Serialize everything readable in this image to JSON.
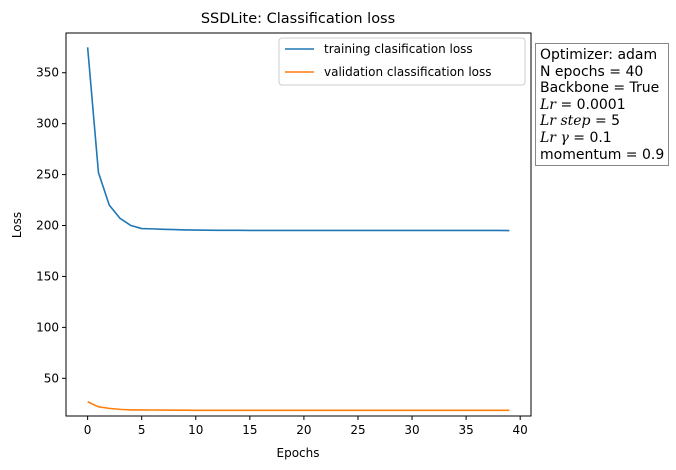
{
  "chart_data": {
    "type": "line",
    "title": "SSDLite: Classification loss",
    "xlabel": "Epochs",
    "ylabel": "Loss",
    "xlim": [
      -2,
      41
    ],
    "ylim": [
      13,
      389
    ],
    "xticks": [
      0,
      5,
      10,
      15,
      20,
      25,
      30,
      35,
      40
    ],
    "yticks": [
      50,
      100,
      150,
      200,
      250,
      300,
      350
    ],
    "legend_position": "top-right",
    "grid": false,
    "series": [
      {
        "name": "training clasification loss",
        "color": "#1f77b4",
        "x": [
          0,
          1,
          2,
          3,
          4,
          5,
          6,
          7,
          8,
          9,
          10,
          11,
          12,
          13,
          14,
          15,
          16,
          17,
          18,
          19,
          20,
          21,
          22,
          23,
          24,
          25,
          26,
          27,
          28,
          29,
          30,
          31,
          32,
          33,
          34,
          35,
          36,
          37,
          38,
          39
        ],
        "values": [
          375,
          252,
          220,
          207,
          200,
          197,
          196.7,
          196.3,
          196,
          195.7,
          195.5,
          195.4,
          195.3,
          195.3,
          195.3,
          195.2,
          195.2,
          195.2,
          195.2,
          195.2,
          195.2,
          195.2,
          195.2,
          195.2,
          195.2,
          195.2,
          195.2,
          195.2,
          195.2,
          195.2,
          195.2,
          195.2,
          195.2,
          195.2,
          195.2,
          195.2,
          195.2,
          195.2,
          195.2,
          195.0
        ]
      },
      {
        "name": "validation classification loss",
        "color": "#ff7f0e",
        "x": [
          0,
          1,
          2,
          3,
          4,
          5,
          6,
          7,
          8,
          9,
          10,
          11,
          12,
          13,
          14,
          15,
          16,
          17,
          18,
          19,
          20,
          21,
          22,
          23,
          24,
          25,
          26,
          27,
          28,
          29,
          30,
          31,
          32,
          33,
          34,
          35,
          36,
          37,
          38,
          39
        ],
        "values": [
          27,
          22,
          20.5,
          19.5,
          19,
          19,
          18.9,
          18.8,
          18.7,
          18.7,
          18.6,
          18.6,
          18.6,
          18.6,
          18.6,
          18.6,
          18.6,
          18.6,
          18.6,
          18.6,
          18.6,
          18.6,
          18.6,
          18.6,
          18.6,
          18.6,
          18.6,
          18.6,
          18.6,
          18.6,
          18.6,
          18.6,
          18.6,
          18.6,
          18.6,
          18.6,
          18.6,
          18.6,
          18.6,
          18.6
        ]
      }
    ]
  },
  "info": {
    "optimizer": "Optimizer: adam",
    "epochs": "N epochs = 40",
    "backbone": "Backbone = True",
    "lr_label": "Lr",
    "lr_value": " = 0.0001",
    "lr_step_label": "Lr step",
    "lr_step_value": " = 5",
    "lr_gamma_label": "Lr γ",
    "lr_gamma_value": " = 0.1",
    "momentum": "momentum = 0.9"
  }
}
